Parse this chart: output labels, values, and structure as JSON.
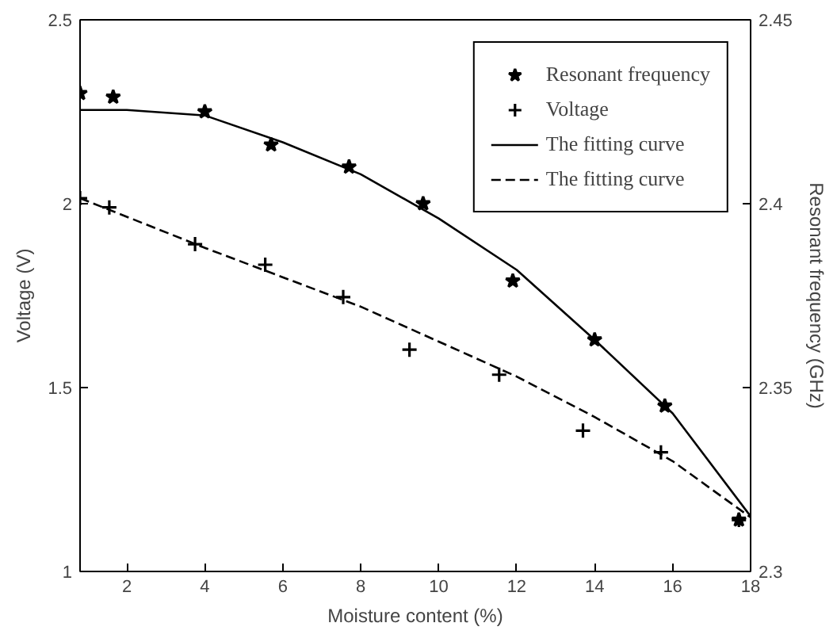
{
  "chart_data": {
    "type": "scatter",
    "xlabel": "Moisture content (%)",
    "ylabel": "Voltage (V)",
    "y2label": "Resonant frequency (GHz)",
    "xlim": [
      0.8,
      18
    ],
    "xticks": [
      2,
      4,
      6,
      8,
      10,
      12,
      14,
      16,
      18
    ],
    "ylim": [
      1,
      2.5
    ],
    "yticks": [
      1,
      1.5,
      2,
      2.5
    ],
    "y2lim": [
      2.3,
      2.45
    ],
    "y2ticks": [
      2.3,
      2.35,
      2.4,
      2.45
    ],
    "grid": false,
    "legend": "top right",
    "series": [
      {
        "name": "Resonant frequency",
        "axis": "y2",
        "marker": "star",
        "color": "#000000",
        "x": [
          0.8,
          1.65,
          4.0,
          5.7,
          7.7,
          9.6,
          11.9,
          14.0,
          15.8,
          17.7
        ],
        "values": [
          2.43,
          2.429,
          2.425,
          2.416,
          2.41,
          2.4,
          2.379,
          2.363,
          2.345,
          2.314
        ]
      },
      {
        "name": "Voltage",
        "marker": "cross",
        "color": "#000000",
        "x": [
          0.8,
          1.55,
          3.75,
          5.55,
          7.55,
          9.25,
          11.55,
          13.7,
          15.7,
          17.7
        ],
        "values": [
          2.015,
          1.99,
          1.89,
          1.834,
          1.746,
          1.603,
          1.535,
          1.383,
          1.324,
          1.14
        ]
      },
      {
        "name": "The fitting curve",
        "type": "line",
        "axis": "y2",
        "line_style": "solid",
        "color": "#000000",
        "x": [
          0.8,
          2,
          4,
          6,
          8,
          10,
          12,
          14,
          16,
          18
        ],
        "values": [
          2.4255,
          2.4255,
          2.424,
          2.4167,
          2.408,
          2.396,
          2.382,
          2.363,
          2.343,
          2.315
        ]
      },
      {
        "name": "The fitting curve",
        "type": "line",
        "line_style": "dashed",
        "color": "#000000",
        "x": [
          0.8,
          4,
          8,
          10,
          12,
          14,
          16,
          18
        ],
        "values": [
          2.015,
          1.88,
          1.72,
          1.625,
          1.53,
          1.42,
          1.3,
          1.147
        ]
      }
    ]
  }
}
